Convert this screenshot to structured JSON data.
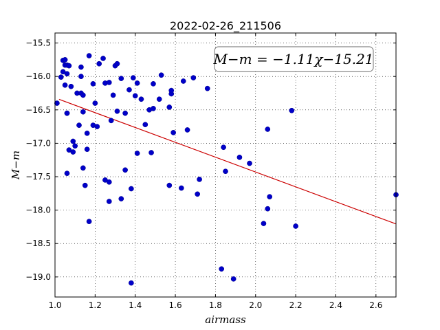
{
  "chart_data": {
    "type": "scatter",
    "title": "2022-02-26_211506",
    "xlabel": "airmass",
    "ylabel": "M−m",
    "xlim": [
      1.0,
      2.7
    ],
    "ylim": [
      -19.3,
      -15.35
    ],
    "x_ticks": [
      "1.0",
      "1.2",
      "1.4",
      "1.6",
      "1.8",
      "2.0",
      "2.2",
      "2.4",
      "2.6"
    ],
    "y_ticks": [
      "−15.5",
      "−16.0",
      "−16.5",
      "−17.0",
      "−17.5",
      "−18.0",
      "−18.5",
      "−19.0"
    ],
    "grid": true,
    "annotation": "M−m = −1.11χ−15.21",
    "fit": {
      "slope": -1.11,
      "intercept": -15.21,
      "color": "#cc0000"
    },
    "point_color": "#0000c8",
    "points": [
      [
        1.01,
        -16.4
      ],
      [
        1.03,
        -16.01
      ],
      [
        1.04,
        -15.93
      ],
      [
        1.04,
        -15.76
      ],
      [
        1.05,
        -15.75
      ],
      [
        1.05,
        -15.83
      ],
      [
        1.06,
        -15.83
      ],
      [
        1.06,
        -15.96
      ],
      [
        1.05,
        -16.13
      ],
      [
        1.06,
        -16.55
      ],
      [
        1.06,
        -16.55
      ],
      [
        1.07,
        -15.84
      ],
      [
        1.06,
        -17.45
      ],
      [
        1.07,
        -17.1
      ],
      [
        1.08,
        -16.15
      ],
      [
        1.09,
        -16.97
      ],
      [
        1.09,
        -17.13
      ],
      [
        1.1,
        -17.04
      ],
      [
        1.11,
        -16.25
      ],
      [
        1.12,
        -16.73
      ],
      [
        1.13,
        -15.86
      ],
      [
        1.13,
        -16.0
      ],
      [
        1.13,
        -16.25
      ],
      [
        1.14,
        -16.28
      ],
      [
        1.14,
        -17.37
      ],
      [
        1.14,
        -16.53
      ],
      [
        1.15,
        -17.63
      ],
      [
        1.16,
        -16.85
      ],
      [
        1.16,
        -17.09
      ],
      [
        1.17,
        -15.69
      ],
      [
        1.17,
        -18.17
      ],
      [
        1.19,
        -16.73
      ],
      [
        1.19,
        -16.11
      ],
      [
        1.2,
        -16.4
      ],
      [
        1.21,
        -16.75
      ],
      [
        1.22,
        -15.81
      ],
      [
        1.24,
        -15.73
      ],
      [
        1.25,
        -16.1
      ],
      [
        1.25,
        -17.55
      ],
      [
        1.27,
        -16.09
      ],
      [
        1.27,
        -17.58
      ],
      [
        1.27,
        -17.87
      ],
      [
        1.28,
        -16.66
      ],
      [
        1.29,
        -16.28
      ],
      [
        1.3,
        -15.84
      ],
      [
        1.31,
        -15.81
      ],
      [
        1.31,
        -16.52
      ],
      [
        1.33,
        -16.03
      ],
      [
        1.33,
        -17.83
      ],
      [
        1.35,
        -17.4
      ],
      [
        1.35,
        -16.55
      ],
      [
        1.37,
        -16.2
      ],
      [
        1.38,
        -17.68
      ],
      [
        1.39,
        -16.02
      ],
      [
        1.38,
        -19.09
      ],
      [
        1.4,
        -16.29
      ],
      [
        1.41,
        -16.1
      ],
      [
        1.41,
        -17.15
      ],
      [
        1.43,
        -16.34
      ],
      [
        1.45,
        -16.72
      ],
      [
        1.47,
        -16.5
      ],
      [
        1.48,
        -17.14
      ],
      [
        1.49,
        -16.11
      ],
      [
        1.49,
        -16.48
      ],
      [
        1.52,
        -16.34
      ],
      [
        1.53,
        -15.98
      ],
      [
        1.57,
        -17.63
      ],
      [
        1.57,
        -16.46
      ],
      [
        1.58,
        -16.26
      ],
      [
        1.58,
        -16.21
      ],
      [
        1.59,
        -16.84
      ],
      [
        1.63,
        -17.67
      ],
      [
        1.64,
        -16.07
      ],
      [
        1.66,
        -16.8
      ],
      [
        1.69,
        -16.02
      ],
      [
        1.71,
        -17.76
      ],
      [
        1.72,
        -17.54
      ],
      [
        1.76,
        -16.18
      ],
      [
        1.83,
        -18.88
      ],
      [
        1.84,
        -17.06
      ],
      [
        1.85,
        -17.42
      ],
      [
        1.89,
        -19.03
      ],
      [
        1.92,
        -17.21
      ],
      [
        1.97,
        -17.3
      ],
      [
        2.04,
        -18.2
      ],
      [
        2.06,
        -17.98
      ],
      [
        2.06,
        -16.79
      ],
      [
        2.07,
        -17.8
      ],
      [
        2.18,
        -16.51
      ],
      [
        2.2,
        -18.24
      ],
      [
        2.7,
        -17.77
      ]
    ]
  }
}
